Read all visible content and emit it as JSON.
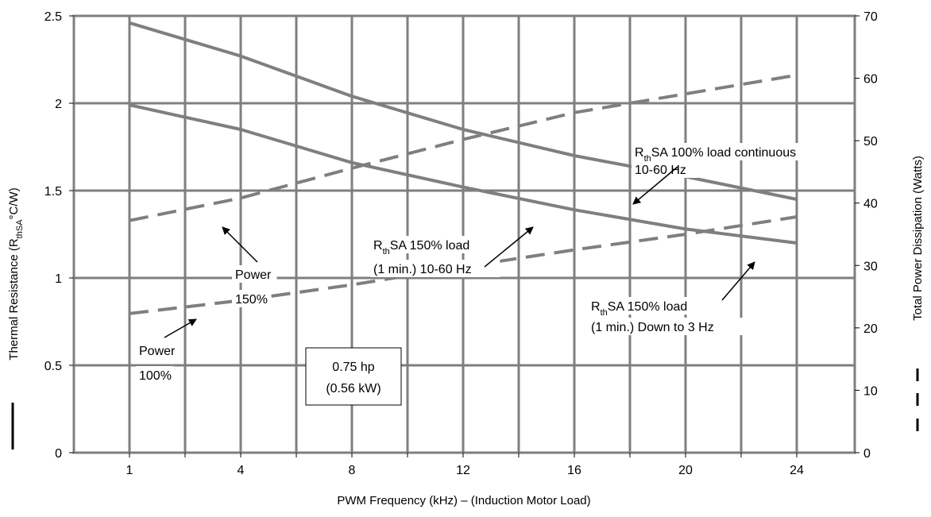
{
  "chart_data": {
    "type": "line",
    "title": "",
    "xlabel": "PWM Frequency (kHz) – (Induction Motor Load)",
    "ylabel_left": {
      "prefix": "Thermal Resistance (R",
      "sub": "thSA",
      "suffix": "°C/W)"
    },
    "ylabel_right": "Total Power Dissipation (Watts)",
    "x_tick_labels": [
      "1",
      "4",
      "8",
      "12",
      "16",
      "20",
      "24"
    ],
    "x_tick_positions": [
      1,
      4,
      8,
      12,
      16,
      20,
      24
    ],
    "x_categories_full": [
      1,
      2,
      4,
      6,
      8,
      10,
      12,
      14,
      16,
      18,
      20,
      22,
      24
    ],
    "y_left": {
      "min": 0,
      "max": 2.5,
      "ticks": [
        0,
        0.5,
        1,
        1.5,
        2,
        2.5
      ],
      "labels": [
        "0",
        "0.5",
        "1",
        "1.5",
        "2",
        "2.5"
      ]
    },
    "y_right": {
      "min": 0,
      "max": 70,
      "ticks": [
        0,
        10,
        20,
        30,
        40,
        50,
        60,
        70
      ],
      "labels": [
        "0",
        "10",
        "20",
        "30",
        "40",
        "50",
        "60",
        "70"
      ]
    },
    "grid": true,
    "series": [
      {
        "axis": "left",
        "style": "solid",
        "x": [
          1,
          4,
          8,
          12,
          16,
          20,
          24
        ],
        "y": [
          2.46,
          2.27,
          2.04,
          1.85,
          1.7,
          1.58,
          1.45
        ]
      },
      {
        "axis": "left",
        "style": "solid",
        "x": [
          1,
          4,
          8,
          12,
          16,
          20,
          24
        ],
        "y": [
          1.99,
          1.85,
          1.66,
          1.52,
          1.39,
          1.28,
          1.2
        ]
      },
      {
        "axis": "right",
        "style": "dashed",
        "x": [
          1,
          4,
          8,
          12,
          16,
          20,
          24
        ],
        "y": [
          37.2,
          40.8,
          45.6,
          50.2,
          54.5,
          57.5,
          60.5
        ]
      },
      {
        "axis": "right",
        "style": "dashed",
        "x": [
          1,
          4,
          8,
          12,
          16,
          20,
          24
        ],
        "y": [
          22.3,
          24.4,
          26.9,
          29.8,
          32.5,
          35.0,
          37.8
        ]
      }
    ],
    "annotations": [
      {
        "id": "rth100",
        "lines": [
          {
            "pre": "R",
            "sub": "th",
            "post": "SA 100% load continuous"
          },
          {
            "pre": "10-60 Hz"
          }
        ]
      },
      {
        "id": "rth150",
        "lines": [
          {
            "pre": "R",
            "sub": "th",
            "post": "SA 150% load"
          },
          {
            "pre": "(1 min.) 10-60 Hz"
          }
        ]
      },
      {
        "id": "rth150down",
        "lines": [
          {
            "pre": "R",
            "sub": "th",
            "post": "SA 150% load"
          },
          {
            "pre": "(1 min.) Down to 3 Hz"
          }
        ]
      },
      {
        "id": "power150",
        "lines": [
          {
            "pre": "Power"
          },
          {
            "pre": "150%"
          }
        ]
      },
      {
        "id": "power100",
        "lines": [
          {
            "pre": "Power"
          },
          {
            "pre": "100%"
          }
        ]
      }
    ],
    "boxed_label": [
      "0.75 hp",
      "(0.56 kW)"
    ],
    "colors": {
      "series": "#7f7f7f",
      "grid": "#7f7f7f",
      "text": "#000000"
    }
  }
}
